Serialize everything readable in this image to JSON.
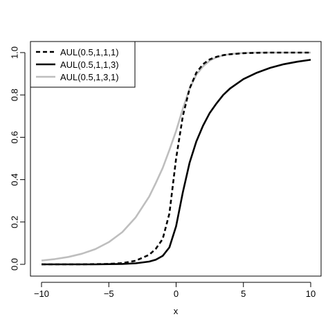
{
  "chart_data": {
    "type": "line",
    "title": "",
    "xlabel": "x",
    "ylabel": "",
    "xlim": [
      -10,
      10
    ],
    "ylim": [
      0,
      1
    ],
    "xticks": [
      -10,
      -5,
      0,
      5,
      10
    ],
    "xtick_labels": [
      "−10",
      "−5",
      "0",
      "5",
      "10"
    ],
    "yticks": [
      0,
      0.2,
      0.4,
      0.6,
      0.8,
      1.0
    ],
    "ytick_labels": [
      "0.0",
      "0.2",
      "0.4",
      "0.6",
      "0.8",
      "1.0"
    ],
    "grid": false,
    "legend_position": "top-left",
    "x": [
      -10,
      -9,
      -8,
      -7,
      -6,
      -5,
      -4,
      -3,
      -2,
      -1.5,
      -1,
      -0.5,
      0,
      0.5,
      1,
      1.5,
      2,
      2.5,
      3,
      3.5,
      4,
      5,
      6,
      7,
      8,
      9,
      10
    ],
    "series": [
      {
        "name": "AUL(0.5,1,1,1)",
        "color": "#000000",
        "dash": "dashed",
        "values": [
          0.0,
          0.0,
          0.0,
          0.0,
          0.001,
          0.002,
          0.006,
          0.017,
          0.045,
          0.074,
          0.12,
          0.24,
          0.5,
          0.7,
          0.83,
          0.905,
          0.945,
          0.968,
          0.98,
          0.988,
          0.992,
          0.997,
          0.999,
          1.0,
          1.0,
          1.0,
          1.0
        ]
      },
      {
        "name": "AUL(0.5,1,1,3)",
        "color": "#000000",
        "dash": "solid",
        "values": [
          0.0,
          0.0,
          0.0,
          0.0,
          0.0,
          0.001,
          0.002,
          0.005,
          0.013,
          0.022,
          0.04,
          0.08,
          0.18,
          0.34,
          0.48,
          0.58,
          0.655,
          0.715,
          0.76,
          0.8,
          0.83,
          0.875,
          0.905,
          0.928,
          0.945,
          0.957,
          0.966
        ]
      },
      {
        "name": "AUL(0.5,1,3,1)",
        "color": "#bebebe",
        "dash": "solid",
        "values": [
          0.018,
          0.025,
          0.035,
          0.05,
          0.072,
          0.105,
          0.152,
          0.222,
          0.32,
          0.385,
          0.455,
          0.54,
          0.63,
          0.735,
          0.83,
          0.895,
          0.935,
          0.962,
          0.978,
          0.987,
          0.993,
          0.998,
          1.0,
          1.0,
          1.0,
          1.0,
          1.0
        ]
      }
    ]
  }
}
